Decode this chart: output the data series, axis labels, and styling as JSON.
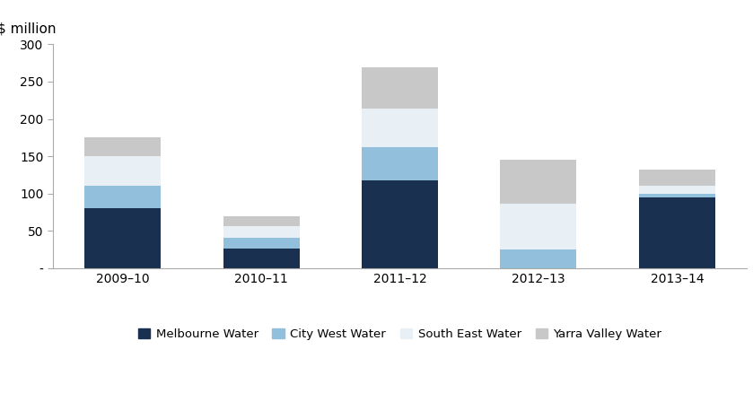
{
  "categories": [
    "2009–10",
    "2010–11",
    "2011–12",
    "2012–13",
    "2013–14"
  ],
  "series": {
    "Melbourne Water": [
      80,
      27,
      118,
      0,
      95
    ],
    "City West Water": [
      30,
      14,
      44,
      25,
      5
    ],
    "South East Water": [
      40,
      16,
      52,
      62,
      10
    ],
    "Yarra Valley Water": [
      25,
      13,
      55,
      58,
      22
    ]
  },
  "colors": {
    "Melbourne Water": "#1a3050",
    "City West Water": "#92c0dc",
    "South East Water": "#e8f0f5",
    "Yarra Valley Water": "#c8c8c8"
  },
  "ylabel": "$ million",
  "ylim": [
    0,
    300
  ],
  "yticks": [
    0,
    50,
    100,
    150,
    200,
    250,
    300
  ],
  "bar_width": 0.55,
  "legend_order": [
    "Melbourne Water",
    "City West Water",
    "South East Water",
    "Yarra Valley Water"
  ],
  "background_color": "#ffffff"
}
